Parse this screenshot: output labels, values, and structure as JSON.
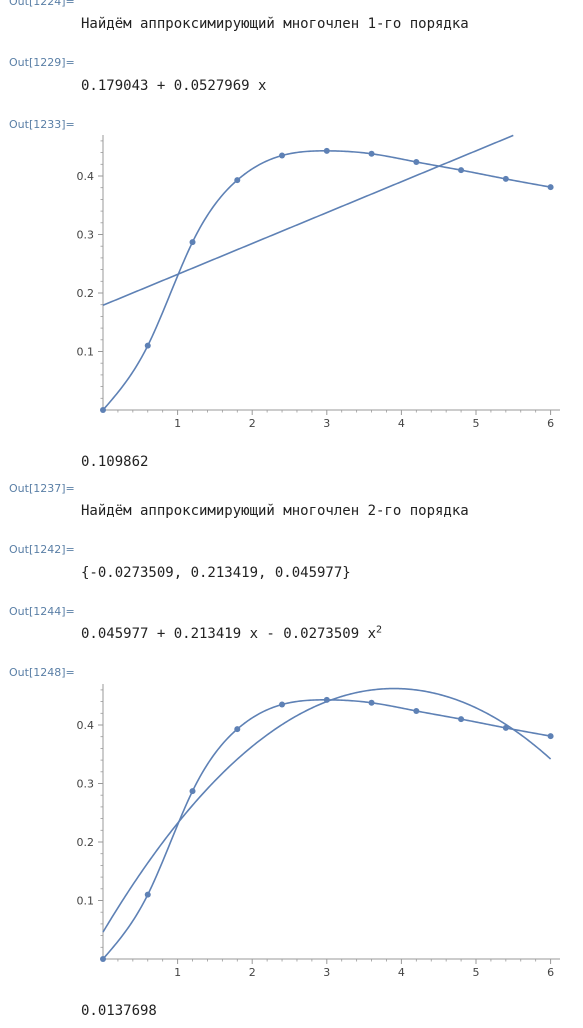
{
  "outputs": {
    "o1": {
      "label": "Out[1224]=",
      "text": "Найдём аппроксимирующий многочлен 1-го порядка"
    },
    "o2": {
      "label": "Out[1229]=",
      "text": "0.179043 + 0.0527969 x"
    },
    "o3": {
      "label": "Out[1233]="
    },
    "v1": {
      "text": "0.109862"
    },
    "o4": {
      "label": "Out[1237]=",
      "text": "Найдём аппроксимирующий многочлен 2-го порядка"
    },
    "o5": {
      "label": "Out[1242]=",
      "text": "{-0.0273509, 0.213419, 0.045977}"
    },
    "o6": {
      "label": "Out[1244]=",
      "text": "0.045977 + 0.213419 x - 0.0273509 x",
      "sup": "2"
    },
    "o7": {
      "label": "Out[1248]="
    },
    "v2": {
      "text": "0.0137698"
    }
  },
  "chart_data": [
    {
      "type": "line",
      "title": "",
      "xlabel": "",
      "ylabel": "",
      "xlim": [
        0,
        6.1
      ],
      "ylim": [
        0,
        0.47
      ],
      "x_ticks": [
        "1",
        "2",
        "3",
        "4",
        "5",
        "6"
      ],
      "y_ticks": [
        "0.1",
        "0.2",
        "0.3",
        "0.4"
      ],
      "color": "#5e81b5",
      "points": {
        "x": [
          0,
          0.6,
          1.2,
          1.8,
          2.4,
          3.0,
          3.6,
          4.2,
          4.8,
          5.4,
          6.0
        ],
        "y": [
          0,
          0.11,
          0.287,
          0.393,
          0.435,
          0.443,
          0.438,
          0.424,
          0.41,
          0.395,
          0.381
        ]
      },
      "fit": {
        "kind": "polynomial",
        "coefficients": [
          0.179043,
          0.0527969
        ]
      }
    },
    {
      "type": "line",
      "title": "",
      "xlabel": "",
      "ylabel": "",
      "xlim": [
        0,
        6.1
      ],
      "ylim": [
        0,
        0.47
      ],
      "x_ticks": [
        "1",
        "2",
        "3",
        "4",
        "5",
        "6"
      ],
      "y_ticks": [
        "0.1",
        "0.2",
        "0.3",
        "0.4"
      ],
      "color": "#5e81b5",
      "points": {
        "x": [
          0,
          0.6,
          1.2,
          1.8,
          2.4,
          3.0,
          3.6,
          4.2,
          4.8,
          5.4,
          6.0
        ],
        "y": [
          0,
          0.11,
          0.287,
          0.393,
          0.435,
          0.443,
          0.438,
          0.424,
          0.41,
          0.395,
          0.381
        ]
      },
      "fit": {
        "kind": "polynomial",
        "coefficients": [
          0.045977,
          0.213419,
          -0.0273509
        ]
      }
    }
  ]
}
